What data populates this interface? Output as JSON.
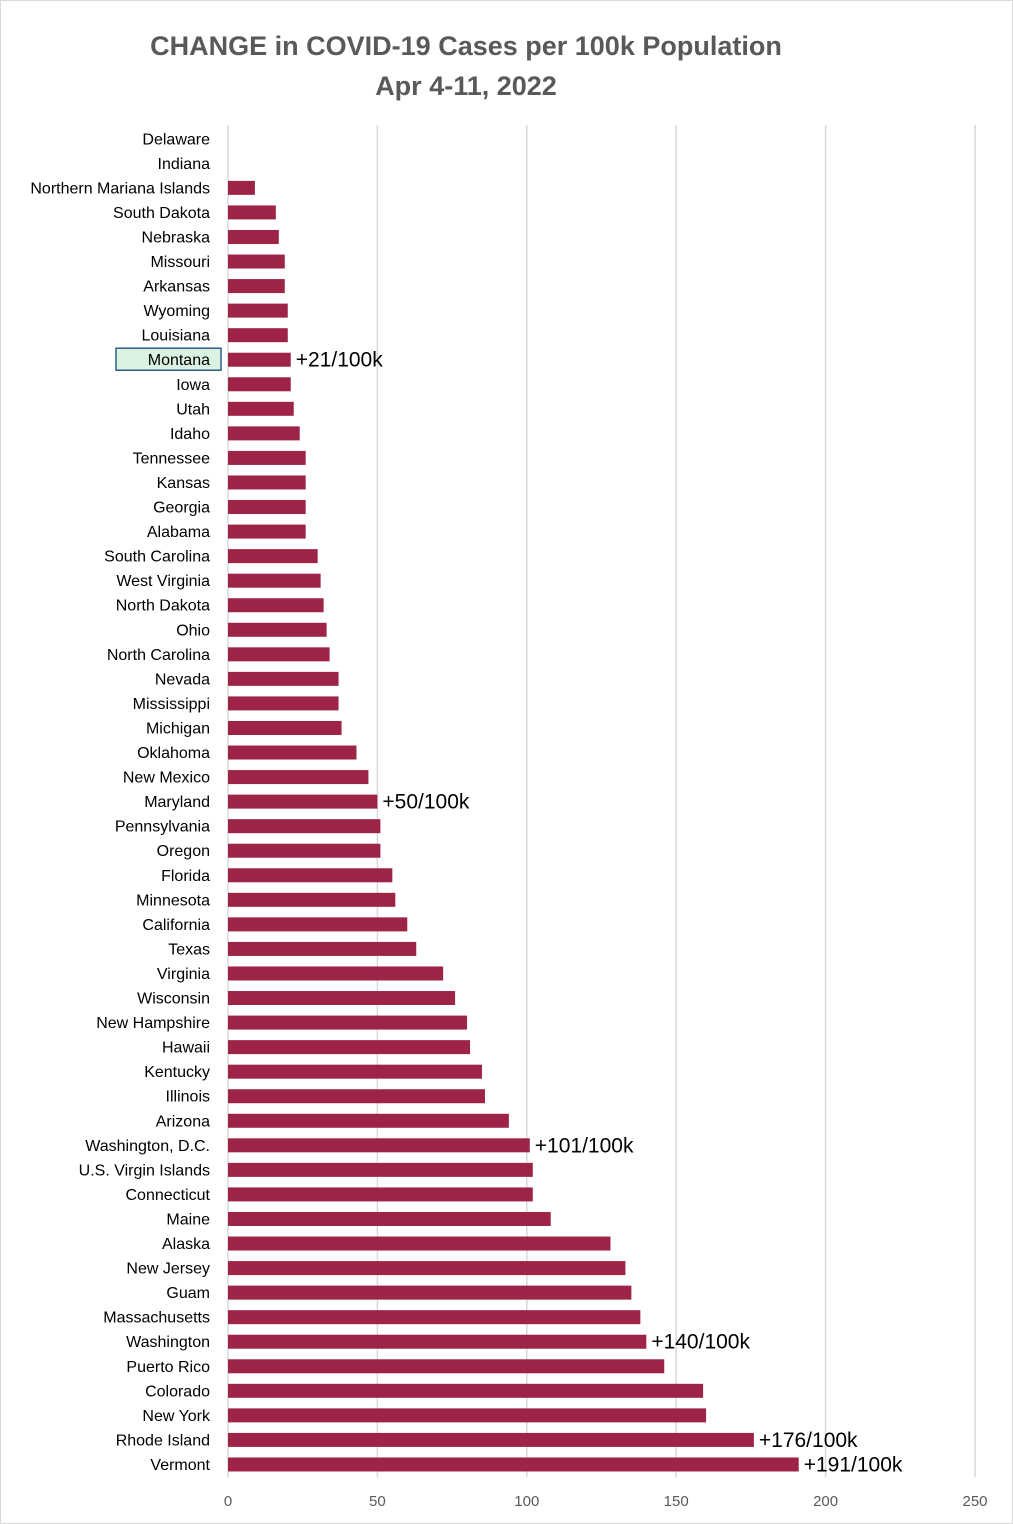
{
  "chart_data": {
    "type": "bar",
    "orientation": "horizontal",
    "title": [
      "CHANGE in COVID-19 Cases per 100k Population",
      "Apr 4-11, 2022"
    ],
    "xlabel": "",
    "ylabel": "",
    "xlim": [
      0,
      250
    ],
    "xticks": [
      "0",
      "50",
      "100",
      "150",
      "200",
      "250"
    ],
    "grid": true,
    "legend": "none",
    "colors": {
      "bar": "#9e2447",
      "grid": "#d9d9d9",
      "highlight_fill": "#d9f2e1",
      "highlight_border": "#2f5f8a"
    },
    "highlight_category": "Montana",
    "categories": [
      "Delaware",
      "Indiana",
      "Northern Mariana Islands",
      "South Dakota",
      "Nebraska",
      "Missouri",
      "Arkansas",
      "Wyoming",
      "Louisiana",
      "Montana",
      "Iowa",
      "Utah",
      "Idaho",
      "Tennessee",
      "Kansas",
      "Georgia",
      "Alabama",
      "South Carolina",
      "West Virginia",
      "North Dakota",
      "Ohio",
      "North Carolina",
      "Nevada",
      "Mississippi",
      "Michigan",
      "Oklahoma",
      "New Mexico",
      "Maryland",
      "Pennsylvania",
      "Oregon",
      "Florida",
      "Minnesota",
      "California",
      "Texas",
      "Virginia",
      "Wisconsin",
      "New Hampshire",
      "Hawaii",
      "Kentucky",
      "Illinois",
      "Arizona",
      "Washington, D.C.",
      "U.S. Virgin Islands",
      "Connecticut",
      "Maine",
      "Alaska",
      "New Jersey",
      "Guam",
      "Massachusetts",
      "Washington",
      "Puerto Rico",
      "Colorado",
      "New York",
      "Rhode Island",
      "Vermont"
    ],
    "values": [
      0,
      0,
      9,
      16,
      17,
      19,
      19,
      20,
      20,
      21,
      21,
      22,
      24,
      26,
      26,
      26,
      26,
      30,
      31,
      32,
      33,
      34,
      37,
      37,
      38,
      43,
      47,
      50,
      51,
      51,
      55,
      56,
      60,
      63,
      72,
      76,
      80,
      81,
      85,
      86,
      94,
      101,
      102,
      102,
      108,
      128,
      133,
      135,
      138,
      140,
      146,
      159,
      160,
      176,
      191
    ],
    "annotations": [
      {
        "category": "Montana",
        "text": "+21/100k"
      },
      {
        "category": "Maryland",
        "text": "+50/100k"
      },
      {
        "category": "Washington, D.C.",
        "text": "+101/100k"
      },
      {
        "category": "Washington",
        "text": "+140/100k"
      },
      {
        "category": "Rhode Island",
        "text": "+176/100k"
      },
      {
        "category": "Vermont",
        "text": "+191/100k"
      }
    ]
  }
}
